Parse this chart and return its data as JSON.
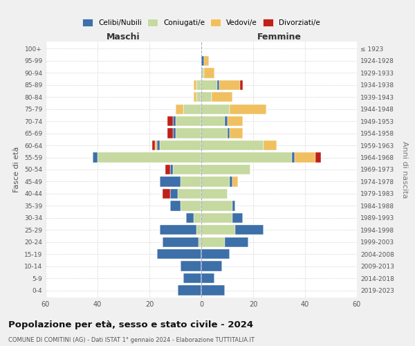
{
  "age_groups": [
    "0-4",
    "5-9",
    "10-14",
    "15-19",
    "20-24",
    "25-29",
    "30-34",
    "35-39",
    "40-44",
    "45-49",
    "50-54",
    "55-59",
    "60-64",
    "65-69",
    "70-74",
    "75-79",
    "80-84",
    "85-89",
    "90-94",
    "95-99",
    "100+"
  ],
  "birth_years": [
    "2019-2023",
    "2014-2018",
    "2009-2013",
    "2004-2008",
    "1999-2003",
    "1994-1998",
    "1989-1993",
    "1984-1988",
    "1979-1983",
    "1974-1978",
    "1969-1973",
    "1964-1968",
    "1959-1963",
    "1954-1958",
    "1949-1953",
    "1944-1948",
    "1939-1943",
    "1934-1938",
    "1929-1933",
    "1924-1928",
    "≤ 1923"
  ],
  "colors": {
    "celibi": "#3d6fa8",
    "coniugati": "#c5d9a0",
    "vedovi": "#f0c060",
    "divorziati": "#c0201a"
  },
  "maschi": {
    "celibi": [
      9,
      7,
      8,
      17,
      14,
      14,
      3,
      4,
      3,
      8,
      1,
      2,
      1,
      1,
      1,
      0,
      0,
      0,
      0,
      0,
      0
    ],
    "coniugati": [
      0,
      0,
      0,
      0,
      1,
      2,
      3,
      8,
      9,
      8,
      11,
      40,
      16,
      10,
      10,
      7,
      2,
      2,
      0,
      0,
      0
    ],
    "vedovi": [
      0,
      0,
      0,
      0,
      0,
      0,
      0,
      0,
      0,
      0,
      0,
      0,
      1,
      0,
      0,
      3,
      1,
      1,
      0,
      0,
      0
    ],
    "divorziati": [
      0,
      0,
      0,
      0,
      0,
      0,
      0,
      0,
      3,
      0,
      2,
      0,
      1,
      2,
      2,
      0,
      0,
      0,
      0,
      0,
      0
    ]
  },
  "femmine": {
    "celibi": [
      9,
      5,
      8,
      11,
      9,
      11,
      4,
      1,
      0,
      1,
      0,
      1,
      0,
      1,
      1,
      0,
      0,
      1,
      0,
      1,
      0
    ],
    "coniugati": [
      0,
      0,
      0,
      0,
      9,
      13,
      12,
      12,
      10,
      11,
      19,
      35,
      24,
      10,
      9,
      11,
      4,
      6,
      1,
      0,
      0
    ],
    "vedovi": [
      0,
      0,
      0,
      0,
      0,
      0,
      0,
      0,
      0,
      2,
      0,
      8,
      5,
      5,
      6,
      14,
      8,
      8,
      4,
      2,
      0
    ],
    "divorziati": [
      0,
      0,
      0,
      0,
      0,
      0,
      0,
      0,
      0,
      0,
      0,
      2,
      0,
      0,
      0,
      0,
      0,
      1,
      0,
      0,
      0
    ]
  },
  "title": "Popolazione per età, sesso e stato civile - 2024",
  "subtitle": "COMUNE DI COMITINI (AG) - Dati ISTAT 1° gennaio 2024 - Elaborazione TUTTITALIA.IT",
  "xlabel_maschi": "Maschi",
  "xlabel_femmine": "Femmine",
  "ylabel": "Fasce di età",
  "ylabel2": "Anni di nascita",
  "xlim": 60,
  "bg_color": "#f0f0f0",
  "plot_bg": "#ffffff",
  "grid_color": "#cccccc"
}
